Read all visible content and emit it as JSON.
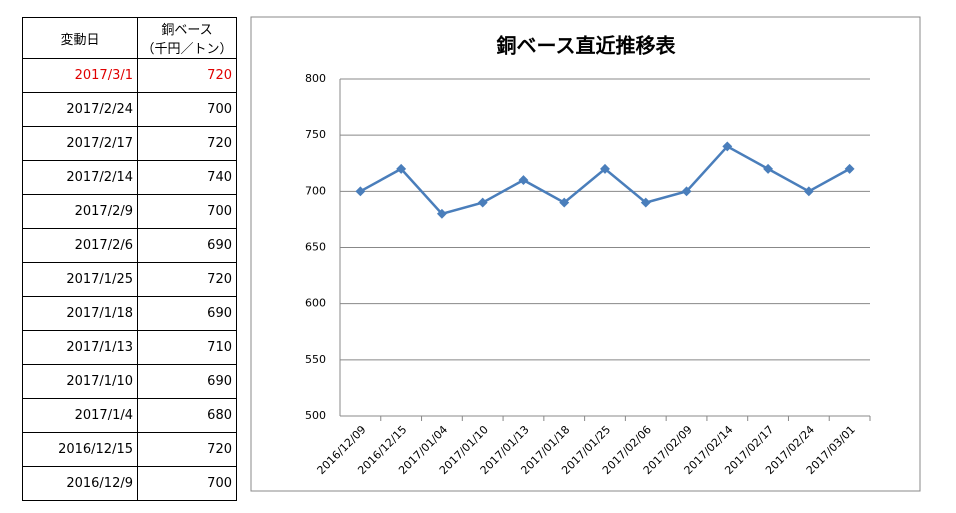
{
  "table": {
    "header": [
      "変動日",
      [
        "銅ベース",
        "（千円／トン）"
      ]
    ],
    "highlight_row": 0,
    "highlight_color": "#e00000",
    "rows": [
      [
        "2017/3/1",
        "720"
      ],
      [
        "2017/2/24",
        "700"
      ],
      [
        "2017/2/17",
        "720"
      ],
      [
        "2017/2/14",
        "740"
      ],
      [
        "2017/2/9",
        "700"
      ],
      [
        "2017/2/6",
        "690"
      ],
      [
        "2017/1/25",
        "720"
      ],
      [
        "2017/1/18",
        "690"
      ],
      [
        "2017/1/13",
        "710"
      ],
      [
        "2017/1/10",
        "690"
      ],
      [
        "2017/1/4",
        "680"
      ],
      [
        "2016/12/15",
        "720"
      ],
      [
        "2016/12/9",
        "700"
      ]
    ]
  },
  "chart_data": {
    "type": "line",
    "title": "銅ベース直近推移表",
    "categories": [
      "2016/12/09",
      "2016/12/15",
      "2017/01/04",
      "2017/01/10",
      "2017/01/13",
      "2017/01/18",
      "2017/01/25",
      "2017/02/06",
      "2017/02/09",
      "2017/02/14",
      "2017/02/17",
      "2017/02/24",
      "2017/03/01"
    ],
    "values": [
      700,
      720,
      680,
      690,
      710,
      690,
      720,
      690,
      700,
      740,
      720,
      700,
      720
    ],
    "color": "#4a7ebb",
    "ylim": [
      500,
      800
    ],
    "yticks": [
      500,
      550,
      600,
      650,
      700,
      750,
      800
    ],
    "grid": true
  }
}
